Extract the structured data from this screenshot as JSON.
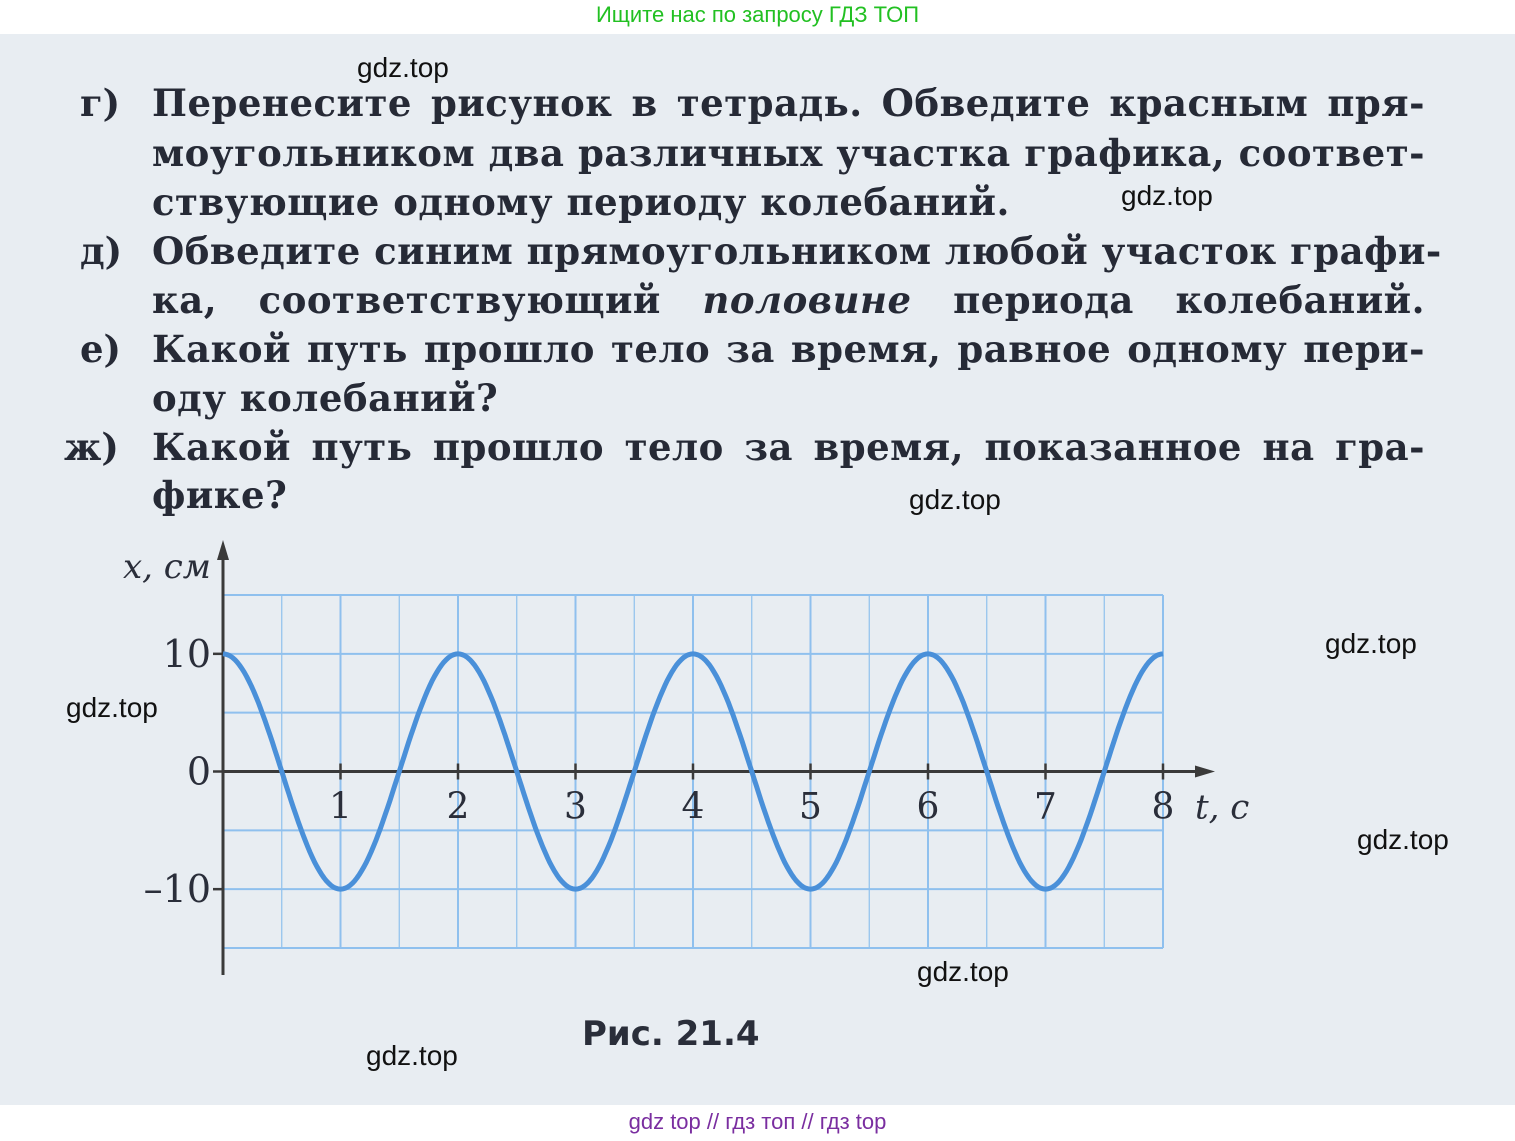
{
  "header": {
    "banner": "Ищите нас по запросу ГДЗ ТОП"
  },
  "footer": {
    "banner": "gdz top  //  гдз топ  //  гдз top"
  },
  "watermark": "gdz.top",
  "tasks": [
    {
      "label": "г)",
      "lines": [
        "Перенесите рисунок в тетрадь. Обведите красным пря-",
        "моугольником два различных участка графика, соответ-",
        "ствующие одному периоду колебаний."
      ]
    },
    {
      "label": "д)",
      "lines": [
        "Обведите синим прямоугольником любой участок графи-"
      ],
      "line2_before": "ка, соответствующий ",
      "line2_em": "половине",
      "line2_after": " периода колебаний."
    },
    {
      "label": "е)",
      "lines": [
        "Какой путь прошло тело за время, равное одному пери-",
        "оду колебаний?"
      ]
    },
    {
      "label": "ж)",
      "lines": [
        "Какой путь прошло тело за время, показанное на гра-",
        "фике?"
      ]
    }
  ],
  "figure": {
    "caption": "Рис. 21.4"
  },
  "chart_data": {
    "type": "line",
    "xlabel": "t, с",
    "ylabel": "x, см",
    "xlim": [
      0,
      8
    ],
    "ylim": [
      -15,
      15
    ],
    "x_ticks": [
      "1",
      "2",
      "3",
      "4",
      "5",
      "6",
      "7",
      "8"
    ],
    "y_ticks": [
      "10",
      "0",
      "–10"
    ],
    "grid": true,
    "function": "x = 10·cos(π·t)",
    "x": [
      0,
      0.5,
      1,
      1.5,
      2,
      2.5,
      3,
      3.5,
      4,
      4.5,
      5,
      5.5,
      6,
      6.5,
      7,
      7.5,
      8
    ],
    "y": [
      10,
      0,
      -10,
      0,
      10,
      0,
      -10,
      0,
      10,
      0,
      -10,
      0,
      10,
      0,
      -10,
      0,
      10
    ],
    "colors": {
      "curve": "#4a90d9",
      "grid": "#8fc0ee",
      "axis": "#3a3a3a"
    }
  }
}
